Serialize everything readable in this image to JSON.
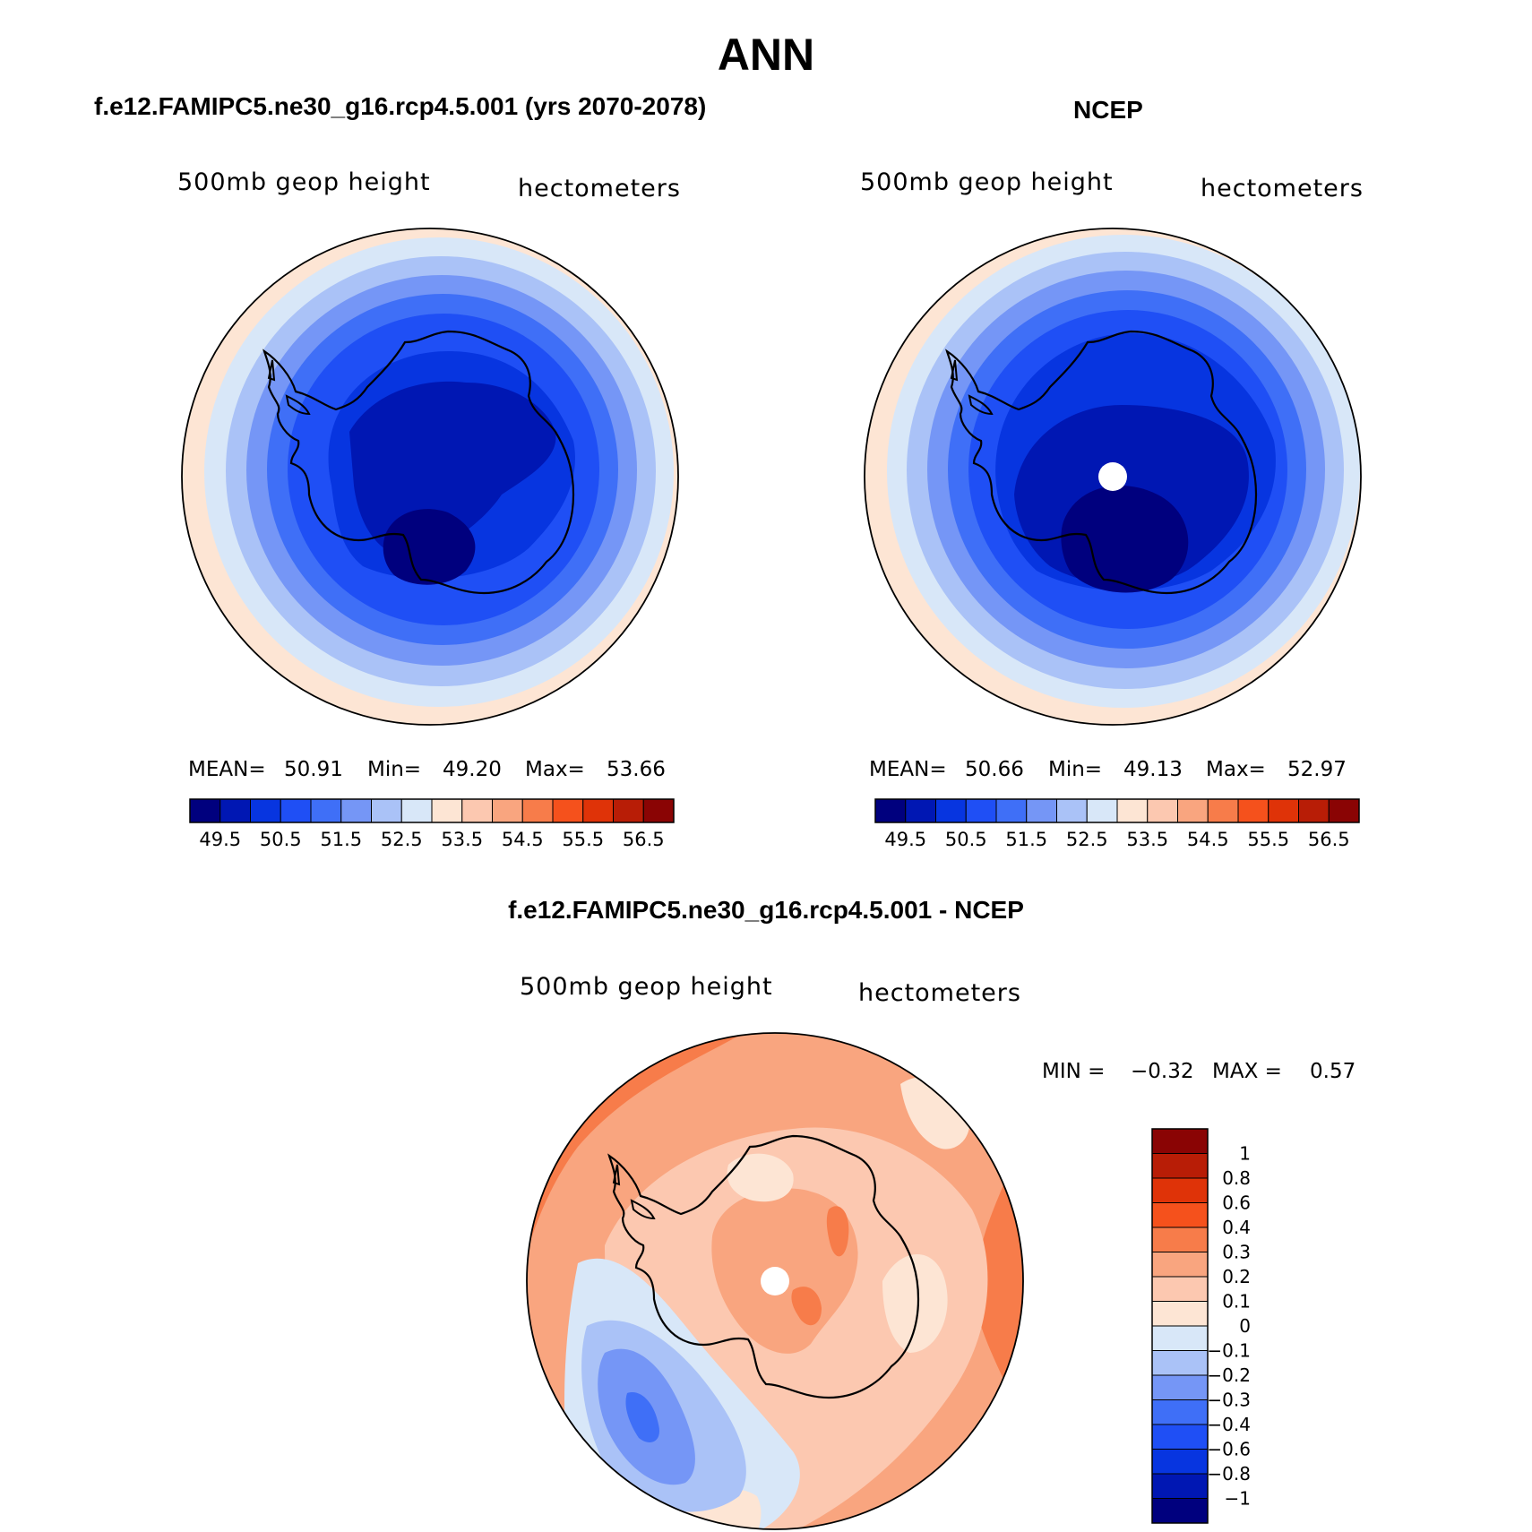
{
  "figure": {
    "title": "ANN",
    "panels": [
      {
        "title": "f.e12.FAMIPC5.ne30_g16.rcp4.5.001 (yrs 2070-2078)",
        "field_label": "500mb geop height",
        "units_label": "hectometers",
        "stats": {
          "mean_label": "MEAN=",
          "mean": "50.91",
          "min_label": "Min=",
          "min": "49.20",
          "max_label": "Max=",
          "max": "53.66"
        }
      },
      {
        "title": "NCEP",
        "field_label": "500mb geop height",
        "units_label": "hectometers",
        "stats": {
          "mean_label": "MEAN=",
          "mean": "50.66",
          "min_label": "Min=",
          "min": "49.13",
          "max_label": "Max=",
          "max": "52.97"
        }
      },
      {
        "title": "f.e12.FAMIPC5.ne30_g16.rcp4.5.001 - NCEP",
        "field_label": "500mb geop height",
        "units_label": "hectometers",
        "stats": {
          "min_label": "MIN =",
          "min": "−0.32",
          "max_label": "MAX =",
          "max": "0.57"
        }
      }
    ]
  },
  "chart_data": [
    {
      "type": "heatmap",
      "projection": "south-polar-stereographic",
      "title": "f.e12.FAMIPC5.ne30_g16.rcp4.5.001 (yrs 2070-2078)",
      "variable": "500mb geop height",
      "units": "hectometers",
      "mean": 50.91,
      "min": 49.2,
      "max": 53.66,
      "colorbar": {
        "orientation": "horizontal",
        "ticks": [
          "49.5",
          "50.5",
          "51.5",
          "52.5",
          "53.5",
          "54.5",
          "55.5",
          "56.5"
        ],
        "levels": [
          49,
          49.5,
          50,
          50.5,
          51,
          51.5,
          52,
          52.5,
          53,
          53.5,
          54,
          54.5,
          55,
          55.5,
          56,
          56.5
        ],
        "colors": [
          "#00007e",
          "#0017b3",
          "#0735e0",
          "#1f4ff5",
          "#3f6ff7",
          "#7596f6",
          "#aac2f7",
          "#d8e7f8",
          "#fde5d4",
          "#fcc8b0",
          "#f9a57f",
          "#f77c4a",
          "#f5511c",
          "#df3308",
          "#b81d06",
          "#8a0404"
        ]
      }
    },
    {
      "type": "heatmap",
      "projection": "south-polar-stereographic",
      "title": "NCEP",
      "variable": "500mb geop height",
      "units": "hectometers",
      "mean": 50.66,
      "min": 49.13,
      "max": 52.97,
      "colorbar": {
        "orientation": "horizontal",
        "ticks": [
          "49.5",
          "50.5",
          "51.5",
          "52.5",
          "53.5",
          "54.5",
          "55.5",
          "56.5"
        ],
        "levels": [
          49,
          49.5,
          50,
          50.5,
          51,
          51.5,
          52,
          52.5,
          53,
          53.5,
          54,
          54.5,
          55,
          55.5,
          56,
          56.5
        ],
        "colors": [
          "#00007e",
          "#0017b3",
          "#0735e0",
          "#1f4ff5",
          "#3f6ff7",
          "#7596f6",
          "#aac2f7",
          "#d8e7f8",
          "#fde5d4",
          "#fcc8b0",
          "#f9a57f",
          "#f77c4a",
          "#f5511c",
          "#df3308",
          "#b81d06",
          "#8a0404"
        ]
      }
    },
    {
      "type": "heatmap",
      "projection": "south-polar-stereographic",
      "title": "f.e12.FAMIPC5.ne30_g16.rcp4.5.001 - NCEP",
      "variable": "500mb geop height",
      "units": "hectometers",
      "min": -0.32,
      "max": 0.57,
      "colorbar": {
        "orientation": "vertical",
        "ticks": [
          "1",
          "0.8",
          "0.6",
          "0.4",
          "0.3",
          "0.2",
          "0.1",
          "0",
          "−0.1",
          "−0.2",
          "−0.3",
          "−0.4",
          "−0.6",
          "−0.8",
          "−1"
        ],
        "levels": [
          1,
          0.8,
          0.6,
          0.4,
          0.3,
          0.2,
          0.1,
          0,
          -0.1,
          -0.2,
          -0.3,
          -0.4,
          -0.6,
          -0.8,
          -1
        ],
        "colors": [
          "#8a0404",
          "#b81d06",
          "#df3308",
          "#f5511c",
          "#f77c4a",
          "#f9a57f",
          "#fcc8b0",
          "#fde5d4",
          "#d8e7f8",
          "#aac2f7",
          "#7596f6",
          "#3f6ff7",
          "#1f4ff5",
          "#0735e0",
          "#0017b3",
          "#00007e"
        ]
      }
    }
  ]
}
